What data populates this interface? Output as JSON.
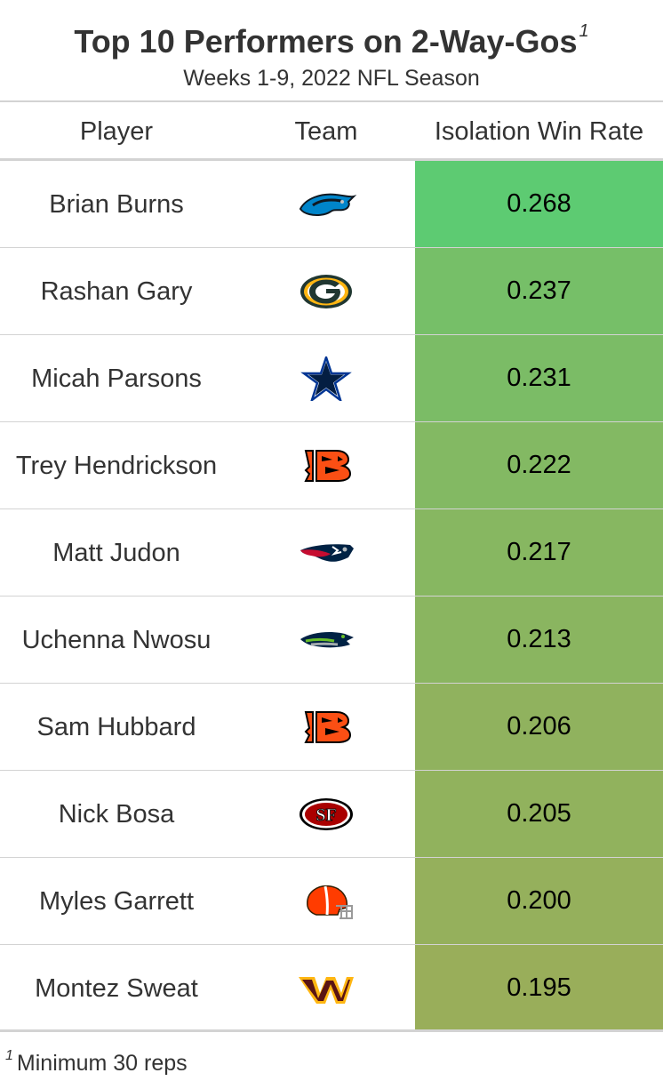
{
  "title": "Top 10 Performers on 2-Way-Gos",
  "title_footnote_mark": "1",
  "subtitle": "Weeks 1-9, 2022 NFL Season",
  "footnote_mark": "1",
  "footnote": "Minimum 30 reps",
  "chart_data": {
    "type": "table",
    "title": "Top 10 Performers on 2-Way-Gos",
    "subtitle": "Weeks 1-9, 2022 NFL Season",
    "columns": [
      "Player",
      "Team",
      "Isolation Win Rate"
    ],
    "color_scale": {
      "low": "#99ae5a",
      "high": "#5dcb72",
      "min": 0.195,
      "max": 0.268
    },
    "rows": [
      {
        "player": "Brian Burns",
        "team": "panthers-logo",
        "rate": "0.268",
        "value": 0.268
      },
      {
        "player": "Rashan Gary",
        "team": "packers-logo",
        "rate": "0.237",
        "value": 0.237
      },
      {
        "player": "Micah Parsons",
        "team": "cowboys-logo",
        "rate": "0.231",
        "value": 0.231
      },
      {
        "player": "Trey Hendrickson",
        "team": "bengals-logo",
        "rate": "0.222",
        "value": 0.222
      },
      {
        "player": "Matt Judon",
        "team": "patriots-logo",
        "rate": "0.217",
        "value": 0.217
      },
      {
        "player": "Uchenna Nwosu",
        "team": "seahawks-logo",
        "rate": "0.213",
        "value": 0.213
      },
      {
        "player": "Sam Hubbard",
        "team": "bengals-logo",
        "rate": "0.206",
        "value": 0.206
      },
      {
        "player": "Nick Bosa",
        "team": "49ers-logo",
        "rate": "0.205",
        "value": 0.205
      },
      {
        "player": "Myles Garrett",
        "team": "browns-logo",
        "rate": "0.200",
        "value": 0.2
      },
      {
        "player": "Montez Sweat",
        "team": "commanders-logo",
        "rate": "0.195",
        "value": 0.195
      }
    ]
  }
}
